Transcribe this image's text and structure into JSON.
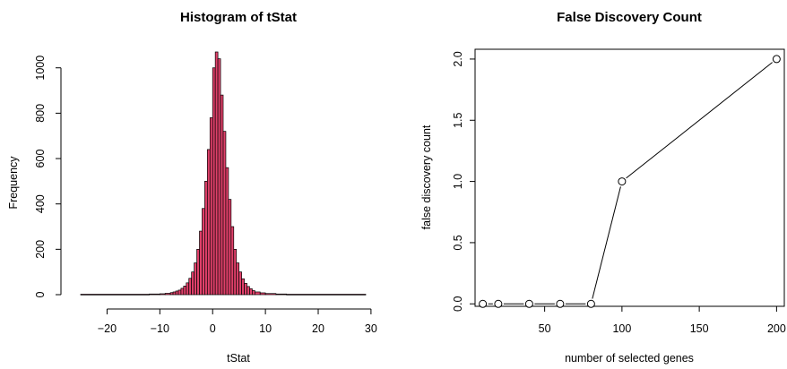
{
  "chart_data": [
    {
      "type": "bar",
      "title": "Histogram of tStat",
      "xlabel": "tStat",
      "ylabel": "Frequency",
      "xlim": [
        -25,
        29
      ],
      "ylim": [
        0,
        1070
      ],
      "xticks": [
        -20,
        -10,
        0,
        10,
        20,
        30
      ],
      "yticks": [
        0,
        200,
        400,
        600,
        800,
        1000
      ],
      "bar_fill": "#e0406a",
      "bin_width": 0.5,
      "bins": [
        {
          "x0": -25,
          "x1": -12,
          "count": 2
        },
        {
          "x0": -12,
          "x1": -10,
          "count": 3
        },
        {
          "x0": -10,
          "x1": -9,
          "count": 4
        },
        {
          "x0": -9,
          "x1": -8,
          "count": 6
        },
        {
          "x0": -8,
          "x1": -7.5,
          "count": 9
        },
        {
          "x0": -7.5,
          "x1": -7,
          "count": 12
        },
        {
          "x0": -7,
          "x1": -6.5,
          "count": 16
        },
        {
          "x0": -6.5,
          "x1": -6,
          "count": 20
        },
        {
          "x0": -6,
          "x1": -5.5,
          "count": 28
        },
        {
          "x0": -5.5,
          "x1": -5,
          "count": 38
        },
        {
          "x0": -5,
          "x1": -4.5,
          "count": 52
        },
        {
          "x0": -4.5,
          "x1": -4,
          "count": 72
        },
        {
          "x0": -4,
          "x1": -3.5,
          "count": 100
        },
        {
          "x0": -3.5,
          "x1": -3,
          "count": 140
        },
        {
          "x0": -3,
          "x1": -2.5,
          "count": 200
        },
        {
          "x0": -2.5,
          "x1": -2,
          "count": 280
        },
        {
          "x0": -2,
          "x1": -1.5,
          "count": 380
        },
        {
          "x0": -1.5,
          "x1": -1,
          "count": 500
        },
        {
          "x0": -1,
          "x1": -0.5,
          "count": 640
        },
        {
          "x0": -0.5,
          "x1": 0,
          "count": 780
        },
        {
          "x0": 0,
          "x1": 0.5,
          "count": 1000
        },
        {
          "x0": 0.5,
          "x1": 1,
          "count": 1070
        },
        {
          "x0": 1,
          "x1": 1.5,
          "count": 1040
        },
        {
          "x0": 1.5,
          "x1": 2,
          "count": 880
        },
        {
          "x0": 2,
          "x1": 2.5,
          "count": 720
        },
        {
          "x0": 2.5,
          "x1": 3,
          "count": 560
        },
        {
          "x0": 3,
          "x1": 3.5,
          "count": 420
        },
        {
          "x0": 3.5,
          "x1": 4,
          "count": 300
        },
        {
          "x0": 4,
          "x1": 4.5,
          "count": 200
        },
        {
          "x0": 4.5,
          "x1": 5,
          "count": 140
        },
        {
          "x0": 5,
          "x1": 5.5,
          "count": 100
        },
        {
          "x0": 5.5,
          "x1": 6,
          "count": 70
        },
        {
          "x0": 6,
          "x1": 6.5,
          "count": 50
        },
        {
          "x0": 6.5,
          "x1": 7,
          "count": 36
        },
        {
          "x0": 7,
          "x1": 7.5,
          "count": 26
        },
        {
          "x0": 7.5,
          "x1": 8,
          "count": 18
        },
        {
          "x0": 8,
          "x1": 9,
          "count": 12
        },
        {
          "x0": 9,
          "x1": 10,
          "count": 8
        },
        {
          "x0": 10,
          "x1": 12,
          "count": 5
        },
        {
          "x0": 12,
          "x1": 14,
          "count": 3
        },
        {
          "x0": 14,
          "x1": 29,
          "count": 2
        }
      ]
    },
    {
      "type": "line",
      "title": "False Discovery Count",
      "xlabel": "number of selected genes",
      "ylabel": "false discovery count",
      "xlim": [
        5,
        205
      ],
      "ylim": [
        -0.02,
        2.08
      ],
      "xticks": [
        50,
        100,
        150,
        200
      ],
      "ytick_values": [
        0,
        0.5,
        1,
        1.5,
        2
      ],
      "ytick_labels": [
        "0.0",
        "0.5",
        "1.0",
        "1.5",
        "2.0"
      ],
      "marker": "open-circle",
      "x": [
        10,
        20,
        40,
        60,
        80,
        100,
        200
      ],
      "y": [
        0,
        0,
        0,
        0,
        0,
        1,
        2
      ]
    }
  ]
}
